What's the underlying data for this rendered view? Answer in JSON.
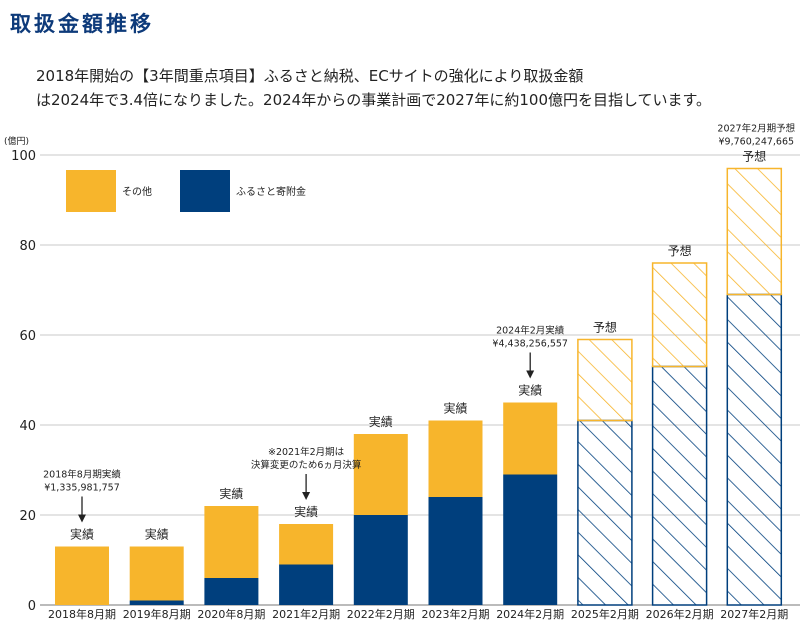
{
  "page": {
    "title": "取扱金額推移",
    "description": [
      "2018年開始の【3年間重点項目】ふるさと納税、ECサイトの強化により取扱金額",
      "は2024年で3.4倍になりました。2024年からの事業計画で2027年に約100億円を目指しています。"
    ]
  },
  "colors": {
    "other": "#f7b52c",
    "furusato": "#003f7d",
    "title": "#0d3a7a"
  },
  "chart_data": {
    "type": "bar",
    "stacked": true,
    "ylabel": "(億円)",
    "ylim": [
      0,
      100
    ],
    "yticks": [
      0,
      20,
      40,
      60,
      80,
      100
    ],
    "grid": true,
    "legend_position": "top-left",
    "categories": [
      "2018年8月期",
      "2019年8月期",
      "2020年8月期",
      "2021年2月期",
      "2022年2月期",
      "2023年2月期",
      "2024年2月期",
      "2025年2月期",
      "2026年2月期",
      "2027年2月期"
    ],
    "series": [
      {
        "name": "ふるさと寄附金",
        "color": "#003f7d",
        "values": [
          0,
          1,
          6,
          9,
          20,
          24,
          29,
          41,
          53,
          69
        ]
      },
      {
        "name": "その他",
        "color": "#f7b52c",
        "values": [
          13,
          12,
          16,
          9,
          18,
          17,
          16,
          18,
          23,
          28
        ]
      }
    ],
    "bar_labels": [
      "実績",
      "実績",
      "実績",
      "実績",
      "実績",
      "実績",
      "実績",
      "予想",
      "予想",
      "予想"
    ],
    "forecast": [
      false,
      false,
      false,
      false,
      false,
      false,
      false,
      true,
      true,
      true
    ],
    "annotations": [
      {
        "bar": 0,
        "lines": [
          "2018年8月期実績",
          "¥1,335,981,757"
        ],
        "arrow": true
      },
      {
        "bar": 3,
        "lines": [
          "※2021年2月期は",
          "決算変更のため6ヵ月決算"
        ],
        "arrow": true
      },
      {
        "bar": 6,
        "lines": [
          "2024年2月実績",
          "¥4,438,256,557"
        ],
        "arrow": true
      },
      {
        "bar": 9,
        "lines": [
          "2027年2月期予想",
          "¥9,760,247,665"
        ],
        "arrow": false
      }
    ]
  }
}
